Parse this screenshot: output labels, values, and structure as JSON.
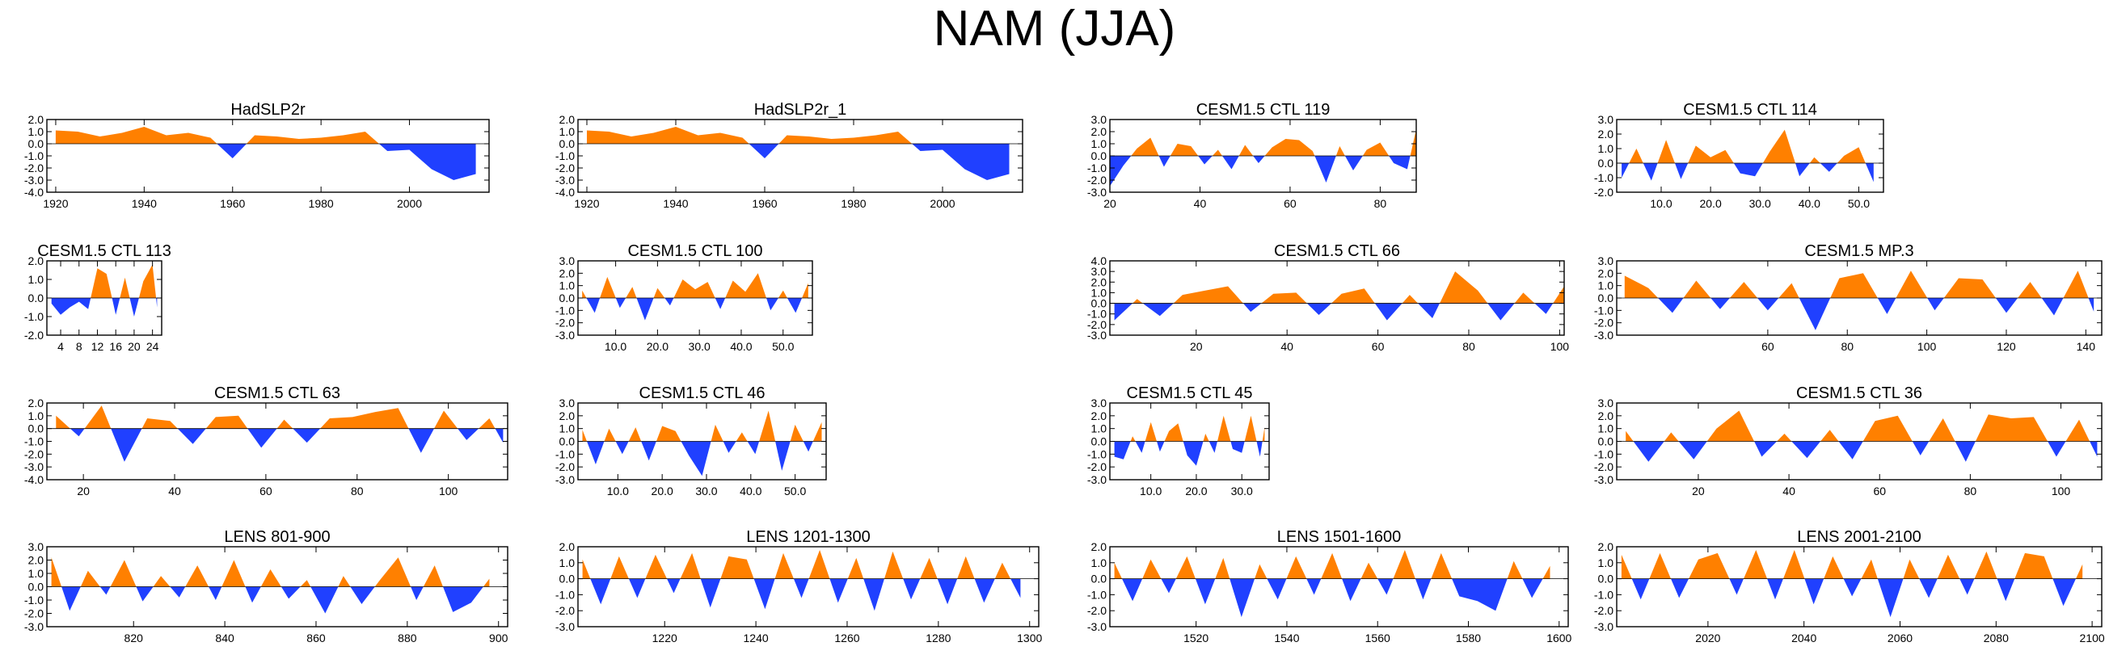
{
  "figure": {
    "title": "NAM (JJA)",
    "colors": {
      "positive": "#ff8000",
      "negative": "#2040ff",
      "axis": "#000000"
    }
  },
  "chart_data": [
    {
      "type": "area",
      "title": "HadSLP2r",
      "xlim": [
        1918,
        2018
      ],
      "ylim": [
        -4.0,
        2.0
      ],
      "yticks": [
        "2.0",
        "1.0",
        "0.0",
        "-1.0",
        "-2.0",
        "-3.0",
        "-4.0"
      ],
      "xticks": [
        "1920",
        "1940",
        "1960",
        "1980",
        "2000"
      ],
      "x": [
        1920,
        1925,
        1930,
        1935,
        1940,
        1945,
        1950,
        1955,
        1960,
        1965,
        1970,
        1975,
        1980,
        1985,
        1990,
        1995,
        2000,
        2005,
        2010,
        2015
      ],
      "values": [
        1.1,
        1.0,
        0.6,
        0.9,
        1.4,
        0.7,
        0.9,
        0.5,
        -1.2,
        0.7,
        0.6,
        0.4,
        0.5,
        0.7,
        1.0,
        -0.6,
        -0.5,
        -2.1,
        -3.0,
        -2.5
      ]
    },
    {
      "type": "area",
      "title": "HadSLP2r_1",
      "xlim": [
        1918,
        2018
      ],
      "ylim": [
        -4.0,
        2.0
      ],
      "yticks": [
        "2.0",
        "1.0",
        "0.0",
        "-1.0",
        "-2.0",
        "-3.0",
        "-4.0"
      ],
      "xticks": [
        "1920",
        "1940",
        "1960",
        "1980",
        "2000"
      ],
      "x": [
        1920,
        1925,
        1930,
        1935,
        1940,
        1945,
        1950,
        1955,
        1960,
        1965,
        1970,
        1975,
        1980,
        1985,
        1990,
        1995,
        2000,
        2005,
        2010,
        2015
      ],
      "values": [
        1.1,
        1.0,
        0.6,
        0.9,
        1.4,
        0.7,
        0.9,
        0.5,
        -1.2,
        0.7,
        0.6,
        0.4,
        0.5,
        0.7,
        1.0,
        -0.6,
        -0.5,
        -2.1,
        -3.0,
        -2.5
      ]
    },
    {
      "type": "area",
      "title": "CESM1.5 CTL 119",
      "xlim": [
        20,
        88
      ],
      "ylim": [
        -3.0,
        3.0
      ],
      "yticks": [
        "3.0",
        "2.0",
        "1.0",
        "0.0",
        "-1.0",
        "-2.0",
        "-3.0"
      ],
      "xticks": [
        "20",
        "40",
        "60",
        "80"
      ],
      "x": [
        20,
        23,
        26,
        29,
        32,
        35,
        38,
        41,
        44,
        47,
        50,
        53,
        56,
        59,
        62,
        65,
        68,
        71,
        74,
        77,
        80,
        83,
        86,
        88
      ],
      "values": [
        -2.5,
        -0.8,
        0.6,
        1.5,
        -0.9,
        1.0,
        0.8,
        -0.7,
        0.5,
        -1.1,
        0.9,
        -0.6,
        0.7,
        1.4,
        1.3,
        0.4,
        -2.2,
        0.8,
        -1.2,
        0.5,
        1.1,
        -0.6,
        -1.1,
        2.2
      ]
    },
    {
      "type": "area",
      "title": "CESM1.5 CTL 114",
      "xlim": [
        1,
        55
      ],
      "ylim": [
        -2.0,
        3.0
      ],
      "yticks": [
        "3.0",
        "2.0",
        "1.0",
        "0.0",
        "-1.0",
        "-2.0"
      ],
      "xticks": [
        "10.0",
        "20.0",
        "30.0",
        "40.0",
        "50.0"
      ],
      "x": [
        2,
        5,
        8,
        11,
        14,
        17,
        20,
        23,
        26,
        29,
        32,
        35,
        38,
        41,
        44,
        47,
        50,
        53
      ],
      "values": [
        -1.0,
        1.0,
        -1.2,
        1.6,
        -1.1,
        1.2,
        0.4,
        0.9,
        -0.7,
        -0.9,
        0.8,
        2.3,
        -0.9,
        0.4,
        -0.6,
        0.5,
        1.1,
        -1.3
      ]
    },
    {
      "type": "area",
      "title": "CESM1.5 CTL 113",
      "xlim": [
        1,
        26
      ],
      "ylim": [
        -2.0,
        2.0
      ],
      "yticks": [
        "2.0",
        "1.0",
        "0.0",
        "-1.0",
        "-2.0"
      ],
      "xticks": [
        "4",
        "8",
        "12",
        "16",
        "20",
        "24"
      ],
      "x": [
        2,
        4,
        6,
        8,
        10,
        12,
        14,
        16,
        18,
        20,
        22,
        24,
        25
      ],
      "values": [
        -0.3,
        -0.9,
        -0.5,
        -0.2,
        -0.6,
        1.6,
        1.3,
        -0.9,
        1.1,
        -1.0,
        0.9,
        1.8,
        -0.5
      ]
    },
    {
      "type": "area",
      "title": "CESM1.5 CTL 100",
      "xlim": [
        1,
        57
      ],
      "ylim": [
        -3.0,
        3.0
      ],
      "yticks": [
        "3.0",
        "2.0",
        "1.0",
        "0.0",
        "-1.0",
        "-2.0",
        "-3.0"
      ],
      "xticks": [
        "10.0",
        "20.0",
        "30.0",
        "40.0",
        "50.0"
      ],
      "x": [
        2,
        5,
        8,
        11,
        14,
        17,
        20,
        23,
        26,
        29,
        32,
        35,
        38,
        41,
        44,
        47,
        50,
        53,
        56
      ],
      "values": [
        0.6,
        -1.2,
        1.7,
        -0.8,
        0.9,
        -1.8,
        0.8,
        -0.6,
        1.5,
        0.7,
        1.3,
        -0.9,
        1.4,
        0.5,
        2.0,
        -1.0,
        0.6,
        -1.2,
        1.2
      ]
    },
    {
      "type": "area",
      "title": "CESM1.5 CTL 66",
      "xlim": [
        1,
        101
      ],
      "ylim": [
        -3.0,
        4.0
      ],
      "yticks": [
        "4.0",
        "3.0",
        "2.0",
        "1.0",
        "0.0",
        "-1.0",
        "-2.0",
        "-3.0"
      ],
      "xticks": [
        "20",
        "40",
        "60",
        "80",
        "100"
      ],
      "x": [
        2,
        7,
        12,
        17,
        22,
        27,
        32,
        37,
        42,
        47,
        52,
        57,
        62,
        67,
        72,
        77,
        82,
        87,
        92,
        97,
        101
      ],
      "values": [
        -1.6,
        0.4,
        -1.2,
        0.8,
        1.2,
        1.6,
        -0.8,
        0.9,
        1.0,
        -1.1,
        0.9,
        1.4,
        -1.6,
        0.8,
        -1.4,
        3.0,
        1.2,
        -1.6,
        1.0,
        -1.0,
        1.6
      ]
    },
    {
      "type": "area",
      "title": "CESM1.5 MP.3",
      "xlim": [
        22,
        144
      ],
      "ylim": [
        -3.0,
        3.0
      ],
      "yticks": [
        "3.0",
        "2.0",
        "1.0",
        "0.0",
        "-1.0",
        "-2.0",
        "-3.0"
      ],
      "xticks": [
        "60",
        "80",
        "100",
        "120",
        "140"
      ],
      "x": [
        24,
        30,
        36,
        42,
        48,
        54,
        60,
        66,
        72,
        78,
        84,
        90,
        96,
        102,
        108,
        114,
        120,
        126,
        132,
        138,
        142
      ],
      "values": [
        1.8,
        0.8,
        -1.2,
        1.4,
        -0.9,
        1.3,
        -1.0,
        1.2,
        -2.6,
        1.6,
        2.0,
        -1.3,
        2.2,
        -1.0,
        1.6,
        1.5,
        -1.2,
        1.3,
        -1.4,
        2.2,
        -1.1
      ]
    },
    {
      "type": "area",
      "title": "CESM1.5 CTL 63",
      "xlim": [
        12,
        113
      ],
      "ylim": [
        -4.0,
        2.0
      ],
      "yticks": [
        "2.0",
        "1.0",
        "0.0",
        "-1.0",
        "-2.0",
        "-3.0",
        "-4.0"
      ],
      "xticks": [
        "20",
        "40",
        "60",
        "80",
        "100"
      ],
      "x": [
        14,
        19,
        24,
        29,
        34,
        39,
        44,
        49,
        54,
        59,
        64,
        69,
        74,
        79,
        84,
        89,
        94,
        99,
        104,
        109,
        112
      ],
      "values": [
        1.0,
        -0.6,
        1.8,
        -2.6,
        0.8,
        0.6,
        -1.2,
        0.9,
        1.0,
        -1.5,
        0.7,
        -1.1,
        0.8,
        0.9,
        1.3,
        1.6,
        -1.9,
        1.4,
        -0.9,
        0.8,
        -1.1
      ]
    },
    {
      "type": "area",
      "title": "CESM1.5 CTL 46",
      "xlim": [
        1,
        57
      ],
      "ylim": [
        -3.0,
        3.0
      ],
      "yticks": [
        "3.0",
        "2.0",
        "1.0",
        "0.0",
        "-1.0",
        "-2.0",
        "-3.0"
      ],
      "xticks": [
        "10.0",
        "20.0",
        "30.0",
        "40.0",
        "50.0"
      ],
      "x": [
        2,
        5,
        8,
        11,
        14,
        17,
        20,
        23,
        26,
        29,
        32,
        35,
        38,
        41,
        44,
        47,
        50,
        53,
        56
      ],
      "values": [
        0.9,
        -1.8,
        1.0,
        -1.0,
        1.1,
        -1.5,
        1.2,
        0.8,
        -1.1,
        -2.7,
        1.3,
        -0.9,
        0.7,
        -1.0,
        2.4,
        -2.3,
        1.3,
        -0.8,
        1.5
      ]
    },
    {
      "type": "area",
      "title": "CESM1.5 CTL 45",
      "xlim": [
        1,
        36
      ],
      "ylim": [
        -3.0,
        3.0
      ],
      "yticks": [
        "3.0",
        "2.0",
        "1.0",
        "0.0",
        "-1.0",
        "-2.0",
        "-3.0"
      ],
      "xticks": [
        "10.0",
        "20.0",
        "30.0"
      ],
      "x": [
        2,
        4,
        6,
        8,
        10,
        12,
        14,
        16,
        18,
        20,
        22,
        24,
        26,
        28,
        30,
        32,
        34,
        35
      ],
      "values": [
        -1.2,
        -1.4,
        0.4,
        -0.9,
        1.5,
        -0.8,
        0.8,
        1.4,
        -1.1,
        -1.9,
        0.6,
        -0.9,
        2.0,
        -0.6,
        -0.9,
        2.0,
        -1.2,
        1.1
      ]
    },
    {
      "type": "area",
      "title": "CESM1.5 CTL 36",
      "xlim": [
        2,
        109
      ],
      "ylim": [
        -3.0,
        3.0
      ],
      "yticks": [
        "3.0",
        "2.0",
        "1.0",
        "0.0",
        "-1.0",
        "-2.0",
        "-3.0"
      ],
      "xticks": [
        "20",
        "40",
        "60",
        "80",
        "100"
      ],
      "x": [
        4,
        9,
        14,
        19,
        24,
        29,
        34,
        39,
        44,
        49,
        54,
        59,
        64,
        69,
        74,
        79,
        84,
        89,
        94,
        99,
        104,
        108
      ],
      "values": [
        0.8,
        -1.6,
        0.7,
        -1.4,
        1.0,
        2.4,
        -1.2,
        0.6,
        -1.3,
        0.9,
        -1.4,
        1.6,
        2.0,
        -1.1,
        1.8,
        -1.6,
        2.1,
        1.8,
        1.9,
        -1.2,
        1.7,
        -1.2
      ]
    },
    {
      "type": "area",
      "title": "LENS 801-900",
      "xlim": [
        801,
        902
      ],
      "ylim": [
        -3.0,
        3.0
      ],
      "yticks": [
        "3.0",
        "2.0",
        "1.0",
        "0.0",
        "-1.0",
        "-2.0",
        "-3.0"
      ],
      "xticks": [
        "820",
        "840",
        "860",
        "880",
        "900"
      ],
      "x": [
        802,
        806,
        810,
        814,
        818,
        822,
        826,
        830,
        834,
        838,
        842,
        846,
        850,
        854,
        858,
        862,
        866,
        870,
        874,
        878,
        882,
        886,
        890,
        894,
        898
      ],
      "values": [
        2.2,
        -1.8,
        1.2,
        -0.6,
        2.0,
        -1.1,
        0.8,
        -0.8,
        1.6,
        -1.0,
        2.0,
        -1.2,
        1.3,
        -0.9,
        0.5,
        -2.0,
        0.8,
        -1.3,
        0.5,
        2.2,
        -1.0,
        1.6,
        -1.9,
        -1.2,
        0.6
      ]
    },
    {
      "type": "area",
      "title": "LENS 1201-1300",
      "xlim": [
        1201,
        1302
      ],
      "ylim": [
        -3.0,
        2.0
      ],
      "yticks": [
        "2.0",
        "1.0",
        "0.0",
        "-1.0",
        "-2.0",
        "-3.0"
      ],
      "xticks": [
        "1220",
        "1240",
        "1260",
        "1280",
        "1300"
      ],
      "x": [
        1202,
        1206,
        1210,
        1214,
        1218,
        1222,
        1226,
        1230,
        1234,
        1238,
        1242,
        1246,
        1250,
        1254,
        1258,
        1262,
        1266,
        1270,
        1274,
        1278,
        1282,
        1286,
        1290,
        1294,
        1298
      ],
      "values": [
        1.2,
        -1.6,
        1.4,
        -1.2,
        1.5,
        -0.9,
        1.6,
        -1.8,
        1.4,
        1.2,
        -1.9,
        1.6,
        -1.2,
        1.8,
        -1.5,
        1.3,
        -2.0,
        1.7,
        -1.3,
        1.3,
        -1.6,
        1.4,
        -1.5,
        1.0,
        -1.2
      ]
    },
    {
      "type": "area",
      "title": "LENS 1501-1600",
      "xlim": [
        1501,
        1602
      ],
      "ylim": [
        -3.0,
        2.0
      ],
      "yticks": [
        "2.0",
        "1.0",
        "0.0",
        "-1.0",
        "-2.0",
        "-3.0"
      ],
      "xticks": [
        "1520",
        "1540",
        "1560",
        "1580",
        "1600"
      ],
      "x": [
        1502,
        1506,
        1510,
        1514,
        1518,
        1522,
        1526,
        1530,
        1534,
        1538,
        1542,
        1546,
        1550,
        1554,
        1558,
        1562,
        1566,
        1570,
        1574,
        1578,
        1582,
        1586,
        1590,
        1594,
        1598
      ],
      "values": [
        1.0,
        -1.4,
        1.2,
        -0.9,
        1.4,
        -1.6,
        1.3,
        -2.4,
        0.9,
        -1.3,
        1.4,
        -1.0,
        1.6,
        -1.4,
        1.0,
        -1.0,
        1.8,
        -1.3,
        1.6,
        -1.1,
        -1.4,
        -2.0,
        1.1,
        -1.2,
        0.8
      ]
    },
    {
      "type": "area",
      "title": "LENS 2001-2100",
      "xlim": [
        2001,
        2102
      ],
      "ylim": [
        -3.0,
        2.0
      ],
      "yticks": [
        "2.0",
        "1.0",
        "0.0",
        "-1.0",
        "-2.0",
        "-3.0"
      ],
      "xticks": [
        "2020",
        "2040",
        "2060",
        "2080",
        "2100"
      ],
      "x": [
        2002,
        2006,
        2010,
        2014,
        2018,
        2022,
        2026,
        2030,
        2034,
        2038,
        2042,
        2046,
        2050,
        2054,
        2058,
        2062,
        2066,
        2070,
        2074,
        2078,
        2082,
        2086,
        2090,
        2094,
        2098
      ],
      "values": [
        1.5,
        -1.3,
        1.6,
        -1.2,
        1.2,
        1.6,
        -1.0,
        1.8,
        -1.3,
        1.8,
        -1.6,
        1.4,
        -1.1,
        1.2,
        -2.4,
        1.2,
        -1.2,
        1.5,
        -1.0,
        1.7,
        -1.4,
        1.6,
        1.4,
        -1.7,
        0.9
      ]
    }
  ]
}
